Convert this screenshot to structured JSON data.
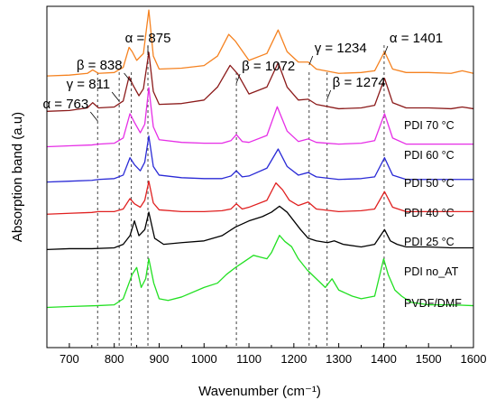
{
  "chart_data": {
    "type": "line",
    "xlabel": "Wavenumber (cm⁻¹)",
    "ylabel": "Absorption band (a.u)",
    "xlim": [
      650,
      1600
    ],
    "x_ticks": [
      700,
      800,
      900,
      1000,
      1100,
      1200,
      1300,
      1400,
      1500,
      1600
    ],
    "y_ticks": "none",
    "grid": false,
    "series": [
      {
        "name": "PDI 70 °C",
        "color": "#f58220",
        "baseline": 0.82,
        "points": [
          [
            650,
            0.02
          ],
          [
            700,
            0.03
          ],
          [
            740,
            0.05
          ],
          [
            752,
            0.09
          ],
          [
            765,
            0.05
          ],
          [
            800,
            0.06
          ],
          [
            820,
            0.12
          ],
          [
            833,
            0.35
          ],
          [
            840,
            0.3
          ],
          [
            850,
            0.2
          ],
          [
            865,
            0.28
          ],
          [
            877,
            0.78
          ],
          [
            887,
            0.25
          ],
          [
            900,
            0.1
          ],
          [
            950,
            0.11
          ],
          [
            1000,
            0.14
          ],
          [
            1030,
            0.25
          ],
          [
            1055,
            0.5
          ],
          [
            1070,
            0.42
          ],
          [
            1100,
            0.2
          ],
          [
            1140,
            0.28
          ],
          [
            1165,
            0.55
          ],
          [
            1185,
            0.3
          ],
          [
            1210,
            0.18
          ],
          [
            1232,
            0.18
          ],
          [
            1250,
            0.1
          ],
          [
            1300,
            0.05
          ],
          [
            1350,
            0.06
          ],
          [
            1380,
            0.08
          ],
          [
            1402,
            0.3
          ],
          [
            1420,
            0.1
          ],
          [
            1450,
            0.06
          ],
          [
            1500,
            0.06
          ],
          [
            1550,
            0.05
          ],
          [
            1575,
            0.08
          ],
          [
            1600,
            0.05
          ]
        ]
      },
      {
        "name": "PDI 60 °C",
        "color": "#8b1a1a",
        "baseline": 0.71,
        "points": [
          [
            650,
            0.02
          ],
          [
            700,
            0.03
          ],
          [
            740,
            0.06
          ],
          [
            752,
            0.12
          ],
          [
            765,
            0.06
          ],
          [
            800,
            0.07
          ],
          [
            820,
            0.14
          ],
          [
            833,
            0.42
          ],
          [
            842,
            0.32
          ],
          [
            855,
            0.2
          ],
          [
            865,
            0.28
          ],
          [
            877,
            0.7
          ],
          [
            887,
            0.25
          ],
          [
            900,
            0.1
          ],
          [
            950,
            0.11
          ],
          [
            1000,
            0.15
          ],
          [
            1030,
            0.3
          ],
          [
            1058,
            0.55
          ],
          [
            1075,
            0.45
          ],
          [
            1100,
            0.22
          ],
          [
            1140,
            0.3
          ],
          [
            1165,
            0.58
          ],
          [
            1185,
            0.3
          ],
          [
            1210,
            0.15
          ],
          [
            1232,
            0.16
          ],
          [
            1250,
            0.1
          ],
          [
            1300,
            0.05
          ],
          [
            1350,
            0.06
          ],
          [
            1380,
            0.09
          ],
          [
            1402,
            0.4
          ],
          [
            1420,
            0.12
          ],
          [
            1450,
            0.06
          ],
          [
            1500,
            0.06
          ],
          [
            1550,
            0.05
          ],
          [
            1575,
            0.07
          ],
          [
            1600,
            0.05
          ]
        ]
      },
      {
        "name": "PDI 50 °C",
        "color": "#e62ee6",
        "baseline": 0.6,
        "points": [
          [
            650,
            0.02
          ],
          [
            700,
            0.03
          ],
          [
            750,
            0.04
          ],
          [
            765,
            0.05
          ],
          [
            800,
            0.06
          ],
          [
            820,
            0.12
          ],
          [
            835,
            0.4
          ],
          [
            845,
            0.3
          ],
          [
            858,
            0.18
          ],
          [
            868,
            0.28
          ],
          [
            877,
            0.7
          ],
          [
            887,
            0.25
          ],
          [
            900,
            0.1
          ],
          [
            950,
            0.07
          ],
          [
            1000,
            0.06
          ],
          [
            1040,
            0.06
          ],
          [
            1060,
            0.09
          ],
          [
            1072,
            0.16
          ],
          [
            1085,
            0.08
          ],
          [
            1100,
            0.07
          ],
          [
            1140,
            0.15
          ],
          [
            1163,
            0.48
          ],
          [
            1185,
            0.2
          ],
          [
            1210,
            0.08
          ],
          [
            1232,
            0.11
          ],
          [
            1250,
            0.07
          ],
          [
            1300,
            0.05
          ],
          [
            1350,
            0.06
          ],
          [
            1380,
            0.09
          ],
          [
            1402,
            0.4
          ],
          [
            1420,
            0.12
          ],
          [
            1450,
            0.05
          ],
          [
            1500,
            0.05
          ],
          [
            1550,
            0.05
          ],
          [
            1600,
            0.05
          ]
        ]
      },
      {
        "name": "PDI 40 °C",
        "color": "#2a2ad6",
        "baseline": 0.49,
        "points": [
          [
            650,
            0.02
          ],
          [
            700,
            0.03
          ],
          [
            750,
            0.04
          ],
          [
            765,
            0.05
          ],
          [
            800,
            0.06
          ],
          [
            820,
            0.1
          ],
          [
            835,
            0.3
          ],
          [
            845,
            0.22
          ],
          [
            858,
            0.15
          ],
          [
            868,
            0.25
          ],
          [
            877,
            0.55
          ],
          [
            887,
            0.2
          ],
          [
            900,
            0.1
          ],
          [
            950,
            0.07
          ],
          [
            1000,
            0.06
          ],
          [
            1040,
            0.06
          ],
          [
            1060,
            0.09
          ],
          [
            1072,
            0.15
          ],
          [
            1085,
            0.08
          ],
          [
            1100,
            0.09
          ],
          [
            1140,
            0.18
          ],
          [
            1165,
            0.4
          ],
          [
            1185,
            0.2
          ],
          [
            1210,
            0.1
          ],
          [
            1232,
            0.13
          ],
          [
            1250,
            0.08
          ],
          [
            1300,
            0.05
          ],
          [
            1350,
            0.06
          ],
          [
            1380,
            0.08
          ],
          [
            1402,
            0.3
          ],
          [
            1420,
            0.1
          ],
          [
            1450,
            0.05
          ],
          [
            1500,
            0.05
          ],
          [
            1550,
            0.05
          ],
          [
            1600,
            0.05
          ]
        ]
      },
      {
        "name": "PDI 25 °C",
        "color": "#e02020",
        "baseline": 0.39,
        "points": [
          [
            650,
            0.02
          ],
          [
            700,
            0.03
          ],
          [
            750,
            0.04
          ],
          [
            765,
            0.05
          ],
          [
            800,
            0.05
          ],
          [
            820,
            0.08
          ],
          [
            835,
            0.2
          ],
          [
            845,
            0.14
          ],
          [
            858,
            0.1
          ],
          [
            868,
            0.18
          ],
          [
            877,
            0.4
          ],
          [
            887,
            0.15
          ],
          [
            900,
            0.07
          ],
          [
            950,
            0.05
          ],
          [
            1000,
            0.05
          ],
          [
            1040,
            0.06
          ],
          [
            1060,
            0.08
          ],
          [
            1072,
            0.14
          ],
          [
            1085,
            0.08
          ],
          [
            1100,
            0.1
          ],
          [
            1140,
            0.18
          ],
          [
            1160,
            0.38
          ],
          [
            1175,
            0.3
          ],
          [
            1190,
            0.18
          ],
          [
            1210,
            0.12
          ],
          [
            1232,
            0.16
          ],
          [
            1250,
            0.08
          ],
          [
            1300,
            0.05
          ],
          [
            1350,
            0.06
          ],
          [
            1380,
            0.08
          ],
          [
            1402,
            0.28
          ],
          [
            1420,
            0.1
          ],
          [
            1450,
            0.05
          ],
          [
            1500,
            0.05
          ],
          [
            1550,
            0.05
          ],
          [
            1600,
            0.05
          ]
        ]
      },
      {
        "name": "PDI no_AT",
        "color": "#000000",
        "baseline": 0.28,
        "points": [
          [
            650,
            0.02
          ],
          [
            700,
            0.03
          ],
          [
            750,
            0.03
          ],
          [
            800,
            0.04
          ],
          [
            820,
            0.08
          ],
          [
            835,
            0.18
          ],
          [
            845,
            0.35
          ],
          [
            855,
            0.18
          ],
          [
            868,
            0.25
          ],
          [
            877,
            0.45
          ],
          [
            890,
            0.15
          ],
          [
            910,
            0.08
          ],
          [
            950,
            0.1
          ],
          [
            1000,
            0.12
          ],
          [
            1040,
            0.18
          ],
          [
            1070,
            0.28
          ],
          [
            1100,
            0.35
          ],
          [
            1130,
            0.4
          ],
          [
            1150,
            0.45
          ],
          [
            1168,
            0.52
          ],
          [
            1185,
            0.45
          ],
          [
            1200,
            0.35
          ],
          [
            1215,
            0.25
          ],
          [
            1232,
            0.15
          ],
          [
            1250,
            0.12
          ],
          [
            1275,
            0.1
          ],
          [
            1290,
            0.12
          ],
          [
            1310,
            0.08
          ],
          [
            1350,
            0.05
          ],
          [
            1380,
            0.08
          ],
          [
            1402,
            0.25
          ],
          [
            1415,
            0.12
          ],
          [
            1430,
            0.08
          ],
          [
            1450,
            0.05
          ],
          [
            1500,
            0.05
          ],
          [
            1550,
            0.04
          ],
          [
            1600,
            0.04
          ]
        ]
      },
      {
        "name": "PVDF/DMF",
        "color": "#22e022",
        "baseline": 0.1,
        "points": [
          [
            650,
            0.02
          ],
          [
            700,
            0.03
          ],
          [
            760,
            0.04
          ],
          [
            800,
            0.05
          ],
          [
            820,
            0.12
          ],
          [
            840,
            0.4
          ],
          [
            850,
            0.48
          ],
          [
            860,
            0.25
          ],
          [
            870,
            0.35
          ],
          [
            877,
            0.58
          ],
          [
            888,
            0.3
          ],
          [
            900,
            0.12
          ],
          [
            920,
            0.1
          ],
          [
            950,
            0.14
          ],
          [
            1000,
            0.25
          ],
          [
            1030,
            0.3
          ],
          [
            1050,
            0.4
          ],
          [
            1070,
            0.48
          ],
          [
            1090,
            0.55
          ],
          [
            1110,
            0.62
          ],
          [
            1125,
            0.6
          ],
          [
            1140,
            0.58
          ],
          [
            1150,
            0.65
          ],
          [
            1168,
            0.85
          ],
          [
            1180,
            0.78
          ],
          [
            1195,
            0.72
          ],
          [
            1210,
            0.58
          ],
          [
            1230,
            0.45
          ],
          [
            1250,
            0.35
          ],
          [
            1270,
            0.25
          ],
          [
            1285,
            0.35
          ],
          [
            1300,
            0.22
          ],
          [
            1330,
            0.15
          ],
          [
            1350,
            0.12
          ],
          [
            1380,
            0.15
          ],
          [
            1400,
            0.58
          ],
          [
            1410,
            0.4
          ],
          [
            1425,
            0.22
          ],
          [
            1440,
            0.15
          ],
          [
            1460,
            0.08
          ],
          [
            1500,
            0.05
          ],
          [
            1550,
            0.05
          ],
          [
            1600,
            0.04
          ]
        ]
      }
    ],
    "annotations": [
      {
        "text": "α = 763",
        "x": 763
      },
      {
        "text": "γ = 811",
        "x": 811
      },
      {
        "text": "β = 838",
        "x": 838
      },
      {
        "text": "α = 875",
        "x": 875
      },
      {
        "text": "β = 1072",
        "x": 1072
      },
      {
        "text": "γ = 1234",
        "x": 1234
      },
      {
        "text": "β = 1274",
        "x": 1274
      },
      {
        "text": "α = 1401",
        "x": 1401
      }
    ]
  }
}
